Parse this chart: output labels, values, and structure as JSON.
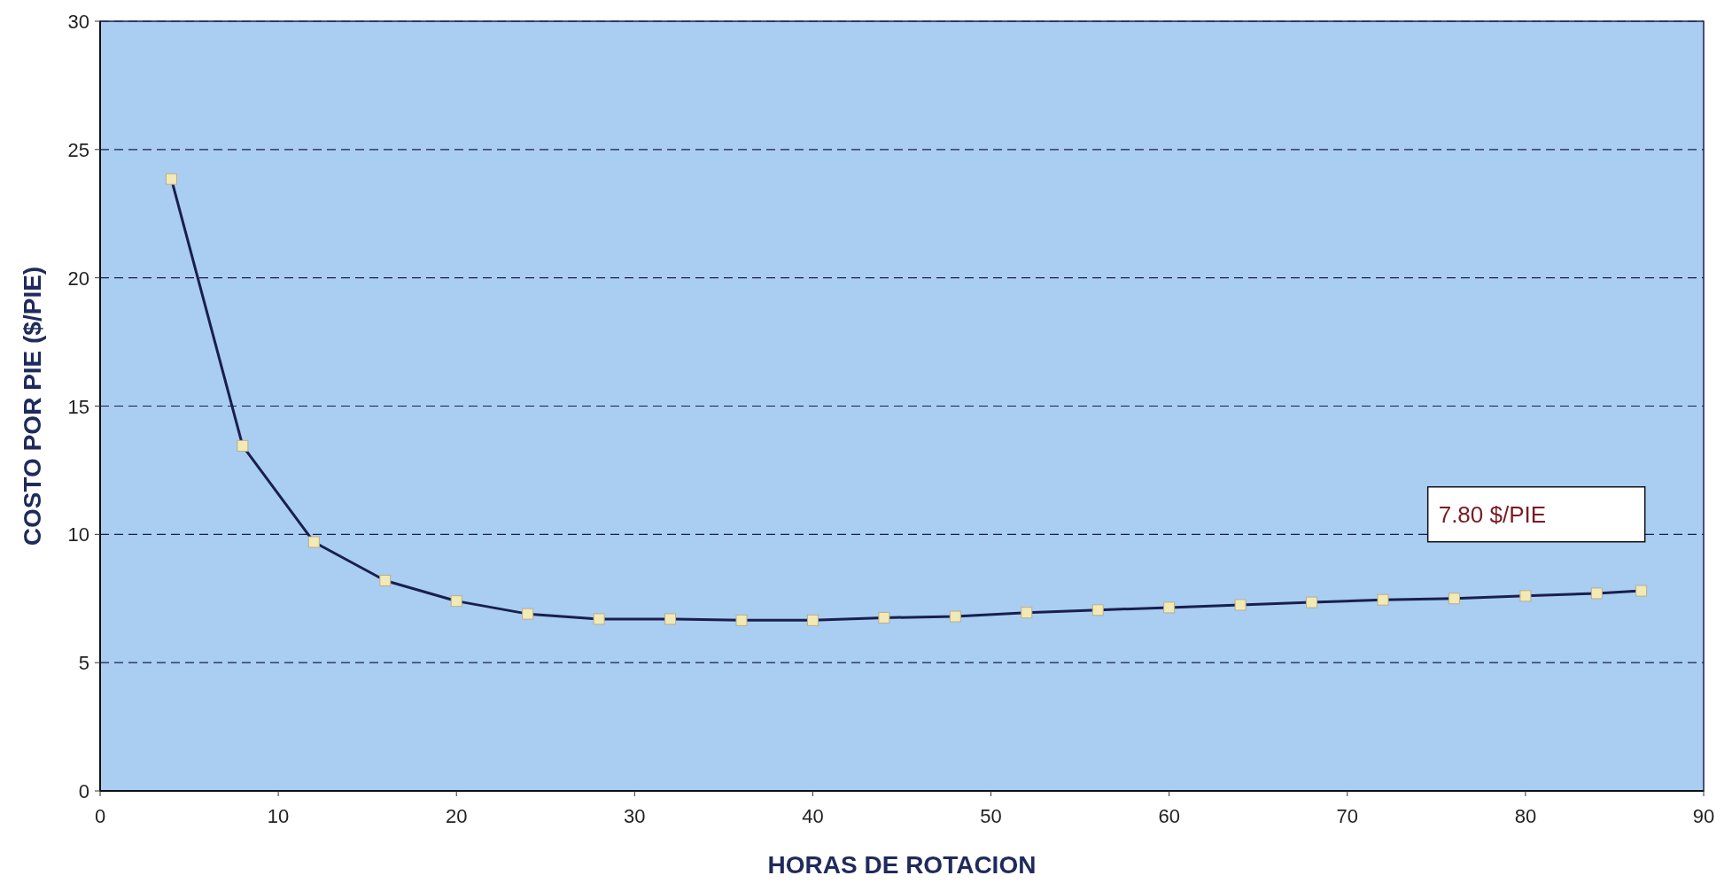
{
  "chart_data": {
    "type": "line",
    "xlabel": "HORAS DE ROTACION",
    "ylabel": "COSTO POR PIE ($/PIE)",
    "x": [
      4,
      8,
      12,
      16,
      20,
      24,
      28,
      32,
      36,
      40,
      44,
      48,
      52,
      56,
      60,
      64,
      68,
      72,
      76,
      80,
      84,
      86.5
    ],
    "series": [
      {
        "color": "#1a1f4d",
        "values": [
          23.85,
          13.45,
          9.7,
          8.2,
          7.4,
          6.9,
          6.7,
          6.7,
          6.65,
          6.65,
          6.75,
          6.8,
          6.95,
          7.05,
          7.15,
          7.25,
          7.35,
          7.45,
          7.5,
          7.6,
          7.7,
          7.8
        ]
      }
    ],
    "xlim": [
      0,
      90
    ],
    "xticks": [
      0,
      10,
      20,
      30,
      40,
      50,
      60,
      70,
      80,
      90
    ],
    "ylim": [
      0,
      30
    ],
    "yticks": [
      0,
      5,
      10,
      15,
      20,
      25,
      30
    ],
    "grid": "y",
    "marker": "square",
    "line_style": "solid",
    "annotations": [
      "7.80 $/PIE"
    ]
  }
}
